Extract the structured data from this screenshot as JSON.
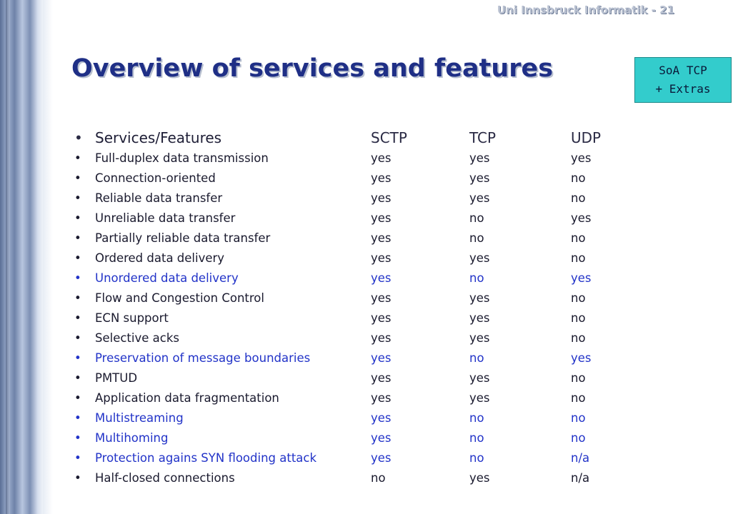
{
  "header": {
    "text": "Uni Innsbruck Informatik - 21"
  },
  "title": "Overview of services and features",
  "badge": {
    "line1": "SoA TCP",
    "line2": "+ Extras"
  },
  "columns": [
    "Services/Features",
    "SCTP",
    "TCP",
    "UDP"
  ],
  "rows": [
    {
      "feature": "Full-duplex data transmission",
      "sctp": "yes",
      "tcp": "yes",
      "udp": "yes",
      "highlight": false
    },
    {
      "feature": "Connection-oriented",
      "sctp": "yes",
      "tcp": "yes",
      "udp": "no",
      "highlight": false
    },
    {
      "feature": "Reliable data transfer",
      "sctp": "yes",
      "tcp": "yes",
      "udp": "no",
      "highlight": false
    },
    {
      "feature": "Unreliable data transfer",
      "sctp": "yes",
      "tcp": "no",
      "udp": "yes",
      "highlight": false
    },
    {
      "feature": "Partially reliable data transfer",
      "sctp": "yes",
      "tcp": "no",
      "udp": "no",
      "highlight": false
    },
    {
      "feature": "Ordered data delivery",
      "sctp": "yes",
      "tcp": "yes",
      "udp": "no",
      "highlight": false
    },
    {
      "feature": "Unordered data delivery",
      "sctp": "yes",
      "tcp": "no",
      "udp": "yes",
      "highlight": true
    },
    {
      "feature": "Flow and Congestion Control",
      "sctp": "yes",
      "tcp": "yes",
      "udp": "no",
      "highlight": false
    },
    {
      "feature": "ECN support",
      "sctp": "yes",
      "tcp": "yes",
      "udp": "no",
      "highlight": false
    },
    {
      "feature": "Selective acks",
      "sctp": "yes",
      "tcp": "yes",
      "udp": "no",
      "highlight": false
    },
    {
      "feature": "Preservation of message boundaries",
      "sctp": "yes",
      "tcp": "no",
      "udp": "yes",
      "highlight": true
    },
    {
      "feature": "PMTUD",
      "sctp": "yes",
      "tcp": "yes",
      "udp": "no",
      "highlight": false
    },
    {
      "feature": "Application data fragmentation",
      "sctp": "yes",
      "tcp": "yes",
      "udp": "no",
      "highlight": false
    },
    {
      "feature": "Multistreaming",
      "sctp": "yes",
      "tcp": "no",
      "udp": "no",
      "highlight": true
    },
    {
      "feature": "Multihoming",
      "sctp": "yes",
      "tcp": "no",
      "udp": "no",
      "highlight": true
    },
    {
      "feature": "Protection agains SYN flooding attack",
      "sctp": "yes",
      "tcp": "no",
      "udp": "n/a",
      "highlight": true
    },
    {
      "feature": "Half-closed connections",
      "sctp": "no",
      "tcp": "yes",
      "udp": "n/a",
      "highlight": false
    }
  ],
  "colors": {
    "title": "#1f2f86",
    "highlight_text": "#2233c8",
    "badge_bg": "#33cccc"
  }
}
